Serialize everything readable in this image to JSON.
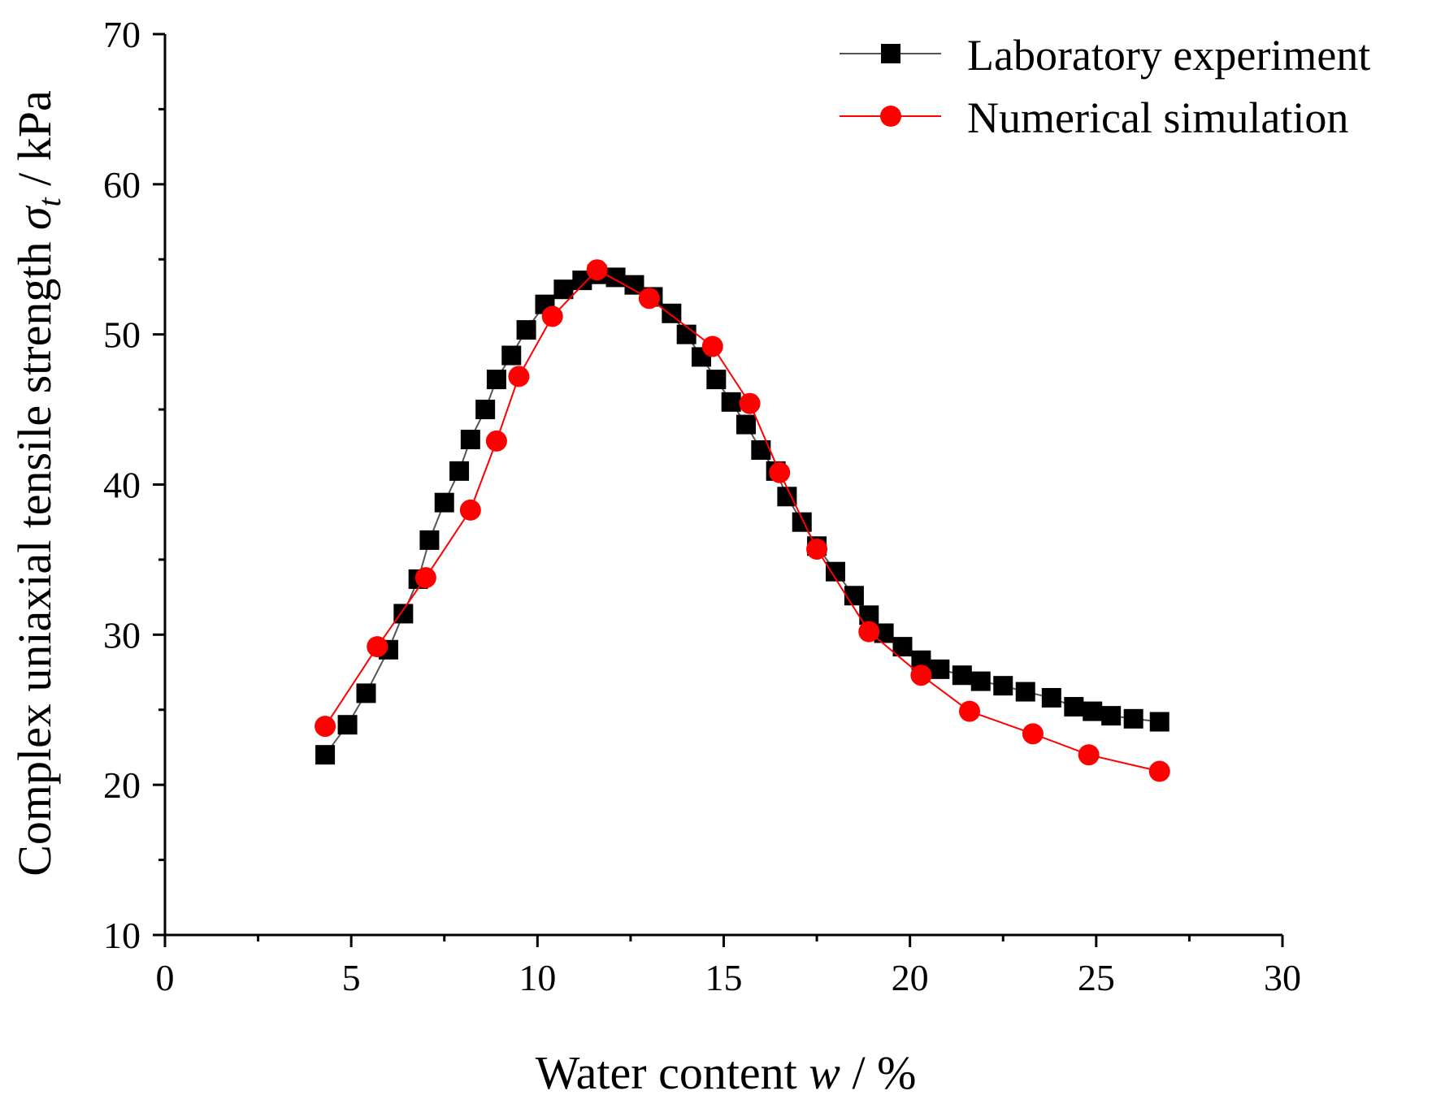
{
  "chart_data": {
    "type": "line",
    "title": "",
    "xlabel": "Water content w / %",
    "xlabel_parts": {
      "prefix": "Water content ",
      "symbol": "w",
      "suffix": " / %"
    },
    "ylabel": "Complex uniaxial tensile strength σt / kPa",
    "ylabel_parts": {
      "prefix": "Complex uniaxial tensile strength ",
      "symbol": "σ",
      "subscript": "t",
      "suffix": " / kPa"
    },
    "xlim": [
      0,
      30
    ],
    "ylim": [
      10,
      70
    ],
    "xticks": [
      0,
      5,
      10,
      15,
      20,
      25,
      30
    ],
    "yticks": [
      10,
      20,
      30,
      40,
      50,
      60,
      70
    ],
    "x_minor_step": 2.5,
    "y_minor_step": 5,
    "grid": false,
    "legend_position": "top-right",
    "series": [
      {
        "name": "Laboratory experiment",
        "color": "#000000",
        "line_color": "#555555",
        "marker": "square",
        "x": [
          4.3,
          4.9,
          5.4,
          6.0,
          6.4,
          6.8,
          7.1,
          7.5,
          7.9,
          8.2,
          8.6,
          8.9,
          9.3,
          9.7,
          10.2,
          10.7,
          11.2,
          11.6,
          12.1,
          12.6,
          13.1,
          13.6,
          14.0,
          14.4,
          14.8,
          15.2,
          15.6,
          16.0,
          16.4,
          16.7,
          17.1,
          17.5,
          18.0,
          18.5,
          18.9,
          19.3,
          19.8,
          20.3,
          20.8,
          21.4,
          21.9,
          22.5,
          23.1,
          23.8,
          24.4,
          24.9,
          25.4,
          26.0,
          26.7
        ],
        "y": [
          22.0,
          24.0,
          26.1,
          29.0,
          31.4,
          33.7,
          36.3,
          38.8,
          40.9,
          43.0,
          45.0,
          47.0,
          48.6,
          50.3,
          52.0,
          53.0,
          53.6,
          54.0,
          53.8,
          53.3,
          52.5,
          51.4,
          50.0,
          48.5,
          47.0,
          45.5,
          44.0,
          42.3,
          40.9,
          39.2,
          37.5,
          35.9,
          34.2,
          32.6,
          31.3,
          30.1,
          29.2,
          28.3,
          27.7,
          27.3,
          26.9,
          26.6,
          26.2,
          25.8,
          25.2,
          24.9,
          24.6,
          24.4,
          24.2
        ]
      },
      {
        "name": "Numerical simulation",
        "color": "#ff0000",
        "line_color": "#ff0000",
        "marker": "circle",
        "x": [
          4.3,
          5.7,
          7.0,
          8.2,
          8.9,
          9.5,
          10.4,
          11.6,
          13.0,
          14.7,
          15.7,
          16.5,
          17.5,
          18.9,
          20.3,
          21.6,
          23.3,
          24.8,
          26.7
        ],
        "y": [
          23.9,
          29.2,
          33.8,
          38.3,
          42.9,
          47.2,
          51.2,
          54.3,
          52.4,
          49.2,
          45.4,
          40.8,
          35.7,
          30.2,
          27.3,
          24.9,
          23.4,
          22.0,
          20.9
        ]
      }
    ]
  }
}
